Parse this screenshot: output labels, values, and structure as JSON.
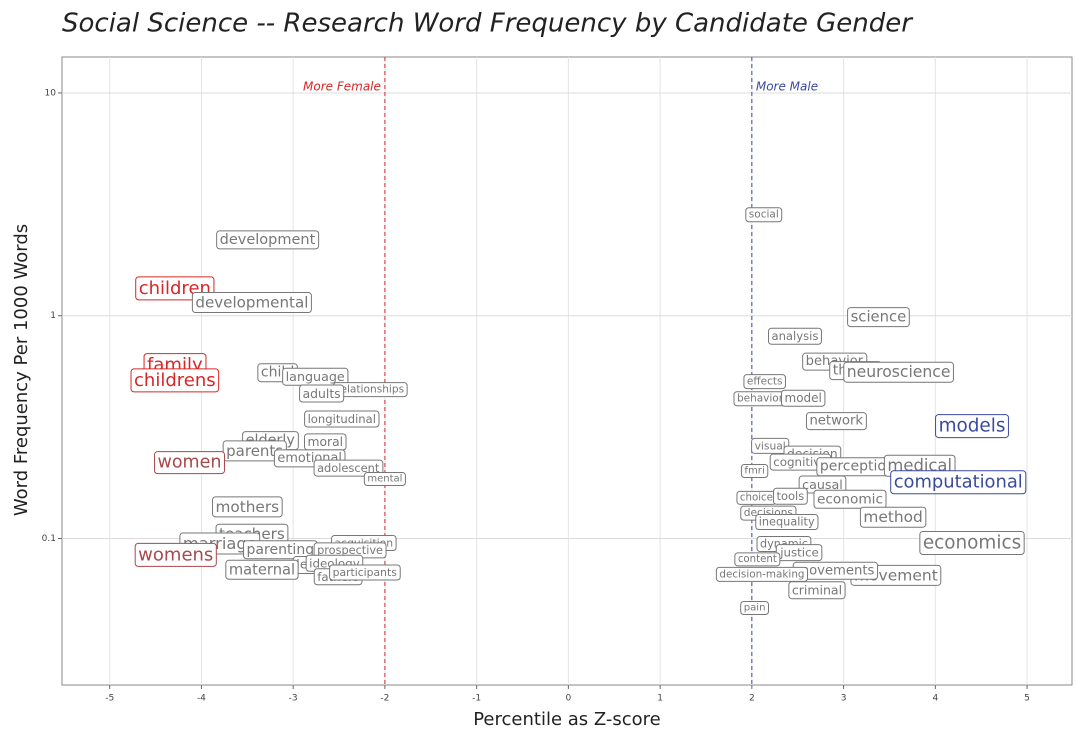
{
  "chart_data": {
    "type": "text-scatter",
    "title": "Social Science -- Research Word Frequency by Candidate Gender",
    "x_label": "Percentile as Z-score",
    "y_label": "Word Frequency Per 1000 Words",
    "xlim": [
      -5.52,
      5.49
    ],
    "ylim": [
      0.022,
      14.5
    ],
    "y_log": true,
    "grid": true,
    "xticks": [
      -5,
      -4,
      -3,
      -2,
      -1,
      0,
      1,
      2,
      3,
      4,
      5
    ],
    "yticks": [
      0.1,
      1,
      10
    ],
    "reference_lines": [
      {
        "x": -2,
        "label": "More Female",
        "color": "#d62728"
      },
      {
        "x": 2,
        "label": "More Male",
        "color": "#3a4a9e"
      }
    ],
    "labels": [
      "development",
      "children",
      "developmental",
      "family",
      "childrens",
      "child",
      "language",
      "relationships",
      "adults",
      "longitudinal",
      "moral",
      "elderly",
      "parents",
      "emotional",
      "women",
      "adolescent",
      "mental",
      "mothers",
      "teachers",
      "marriage",
      "parenting",
      "acquisition",
      "prospective",
      "womens",
      "level",
      "ideology",
      "maternal",
      "fathers",
      "participants",
      "social",
      "science",
      "analysis",
      "behavior",
      "theory",
      "neuroscience",
      "effects",
      "behavioral",
      "model",
      "network",
      "models",
      "visual",
      "decision",
      "cognitive",
      "fmri",
      "perception",
      "medical",
      "computational",
      "causal",
      "choice",
      "tools",
      "economic",
      "decisions",
      "method",
      "inequality",
      "economics",
      "dynamic",
      "justice",
      "content",
      "movement",
      "movements",
      "decision-making",
      "criminal",
      "pain"
    ],
    "x": [
      -3.28,
      -4.29,
      -3.45,
      -4.29,
      -4.29,
      -3.17,
      -2.76,
      -2.16,
      -2.69,
      -2.47,
      -2.65,
      -3.25,
      -3.42,
      -2.82,
      -4.13,
      -2.4,
      -2.0,
      -3.5,
      -3.45,
      -3.8,
      -3.14,
      -2.23,
      -2.38,
      -4.28,
      -2.8,
      -2.55,
      -3.34,
      -2.51,
      -2.22,
      2.13,
      3.38,
      2.47,
      2.9,
      3.13,
      3.6,
      2.14,
      2.14,
      2.56,
      2.92,
      4.4,
      2.2,
      2.66,
      2.53,
      2.03,
      3.15,
      3.83,
      4.25,
      2.77,
      2.05,
      2.42,
      3.07,
      2.18,
      3.54,
      2.38,
      4.4,
      2.35,
      2.52,
      2.06,
      3.57,
      2.91,
      2.11,
      2.71,
      2.03
    ],
    "values": [
      2.19,
      1.32,
      1.14,
      0.597,
      0.51,
      0.555,
      0.527,
      0.466,
      0.443,
      0.342,
      0.27,
      0.275,
      0.246,
      0.229,
      0.219,
      0.206,
      0.186,
      0.138,
      0.104,
      0.094,
      0.089,
      0.095,
      0.088,
      0.084,
      0.076,
      0.077,
      0.072,
      0.067,
      0.07,
      2.84,
      0.98,
      0.805,
      0.622,
      0.567,
      0.555,
      0.506,
      0.424,
      0.424,
      0.338,
      0.318,
      0.259,
      0.238,
      0.219,
      0.202,
      0.21,
      0.21,
      0.178,
      0.173,
      0.153,
      0.154,
      0.15,
      0.13,
      0.124,
      0.118,
      0.095,
      0.094,
      0.086,
      0.081,
      0.068,
      0.072,
      0.069,
      0.058,
      0.049
    ],
    "colors": [
      "#777777",
      "#d62728",
      "#777777",
      "#d62728",
      "#d62728",
      "#777777",
      "#777777",
      "#777777",
      "#777777",
      "#777777",
      "#777777",
      "#777777",
      "#777777",
      "#777777",
      "#a8484a",
      "#777777",
      "#777777",
      "#777777",
      "#777777",
      "#777777",
      "#777777",
      "#777777",
      "#777777",
      "#a8484a",
      "#777777",
      "#777777",
      "#777777",
      "#777777",
      "#777777",
      "#777777",
      "#777777",
      "#777777",
      "#777777",
      "#777777",
      "#777777",
      "#777777",
      "#777777",
      "#777777",
      "#777777",
      "#3a4a9e",
      "#777777",
      "#777777",
      "#777777",
      "#777777",
      "#777777",
      "#777777",
      "#3a4a9e",
      "#777777",
      "#777777",
      "#777777",
      "#777777",
      "#777777",
      "#777777",
      "#777777",
      "#777777",
      "#777777",
      "#777777",
      "#777777",
      "#777777",
      "#777777",
      "#777777",
      "#777777",
      "#777777"
    ]
  }
}
